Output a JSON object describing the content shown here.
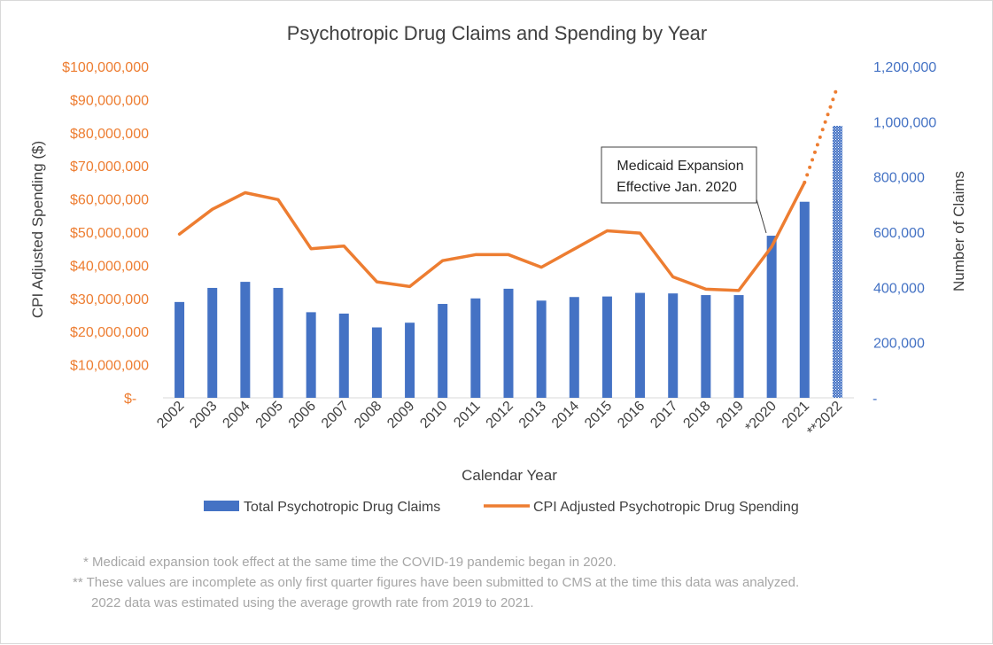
{
  "chart_data": {
    "type": "bar",
    "title": "Psychotropic Drug Claims and Spending  by Year",
    "xlabel": "Calendar Year",
    "ylabel_left": "CPI Adjusted Spending ($)",
    "ylabel_right": "Number of Claims",
    "categories": [
      "2002",
      "2003",
      "2004",
      "2005",
      "2006",
      "2007",
      "2008",
      "2009",
      "2010",
      "2011",
      "2012",
      "2013",
      "2014",
      "2015",
      "2016",
      "2017",
      "2018",
      "2019",
      "*2020",
      "2021",
      "**2022"
    ],
    "left_ticks": [
      "$-",
      "$10,000,000",
      "$20,000,000",
      "$30,000,000",
      "$40,000,000",
      "$50,000,000",
      "$60,000,000",
      "$70,000,000",
      "$80,000,000",
      "$90,000,000",
      "$100,000,000"
    ],
    "right_ticks": [
      "-",
      "200,000",
      "400,000",
      "600,000",
      "800,000",
      "1,000,000",
      "1,200,000"
    ],
    "ylim_left": [
      0,
      100000000
    ],
    "ylim_right": [
      0,
      1200000
    ],
    "series": [
      {
        "name": "Total Psychotropic Drug Claims",
        "kind": "bar",
        "axis": "right",
        "color": "#4472c4",
        "values": [
          347000,
          398000,
          420000,
          398000,
          310000,
          305000,
          255000,
          272000,
          340000,
          360000,
          395000,
          352000,
          365000,
          367000,
          380000,
          378000,
          372000,
          372000,
          587000,
          710000,
          985000
        ],
        "estimated_index": 20
      },
      {
        "name": "CPI Adjusted Psychotropic Drug Spending",
        "kind": "line",
        "axis": "left",
        "color": "#ed7d31",
        "values": [
          49400000,
          56900000,
          61900000,
          59800000,
          45000000,
          45800000,
          35000000,
          33600000,
          41400000,
          43200000,
          43200000,
          39400000,
          44900000,
          50400000,
          49700000,
          36500000,
          32800000,
          32400000,
          45600000,
          65000000,
          94000000
        ],
        "estimated_from_index": 19
      }
    ],
    "annotation": {
      "lines": [
        "Medicaid Expansion",
        "Effective Jan. 2020"
      ],
      "points_to": "*2020"
    },
    "legend_position": "bottom"
  },
  "notes": [
    "* Medicaid expansion took effect at the same time the COVID-19 pandemic began in 2020.",
    "** These values are incomplete as only first quarter figures have been submitted to CMS at the time this data was analyzed.",
    "2022 data was estimated using the average growth rate from 2019 to 2021."
  ]
}
